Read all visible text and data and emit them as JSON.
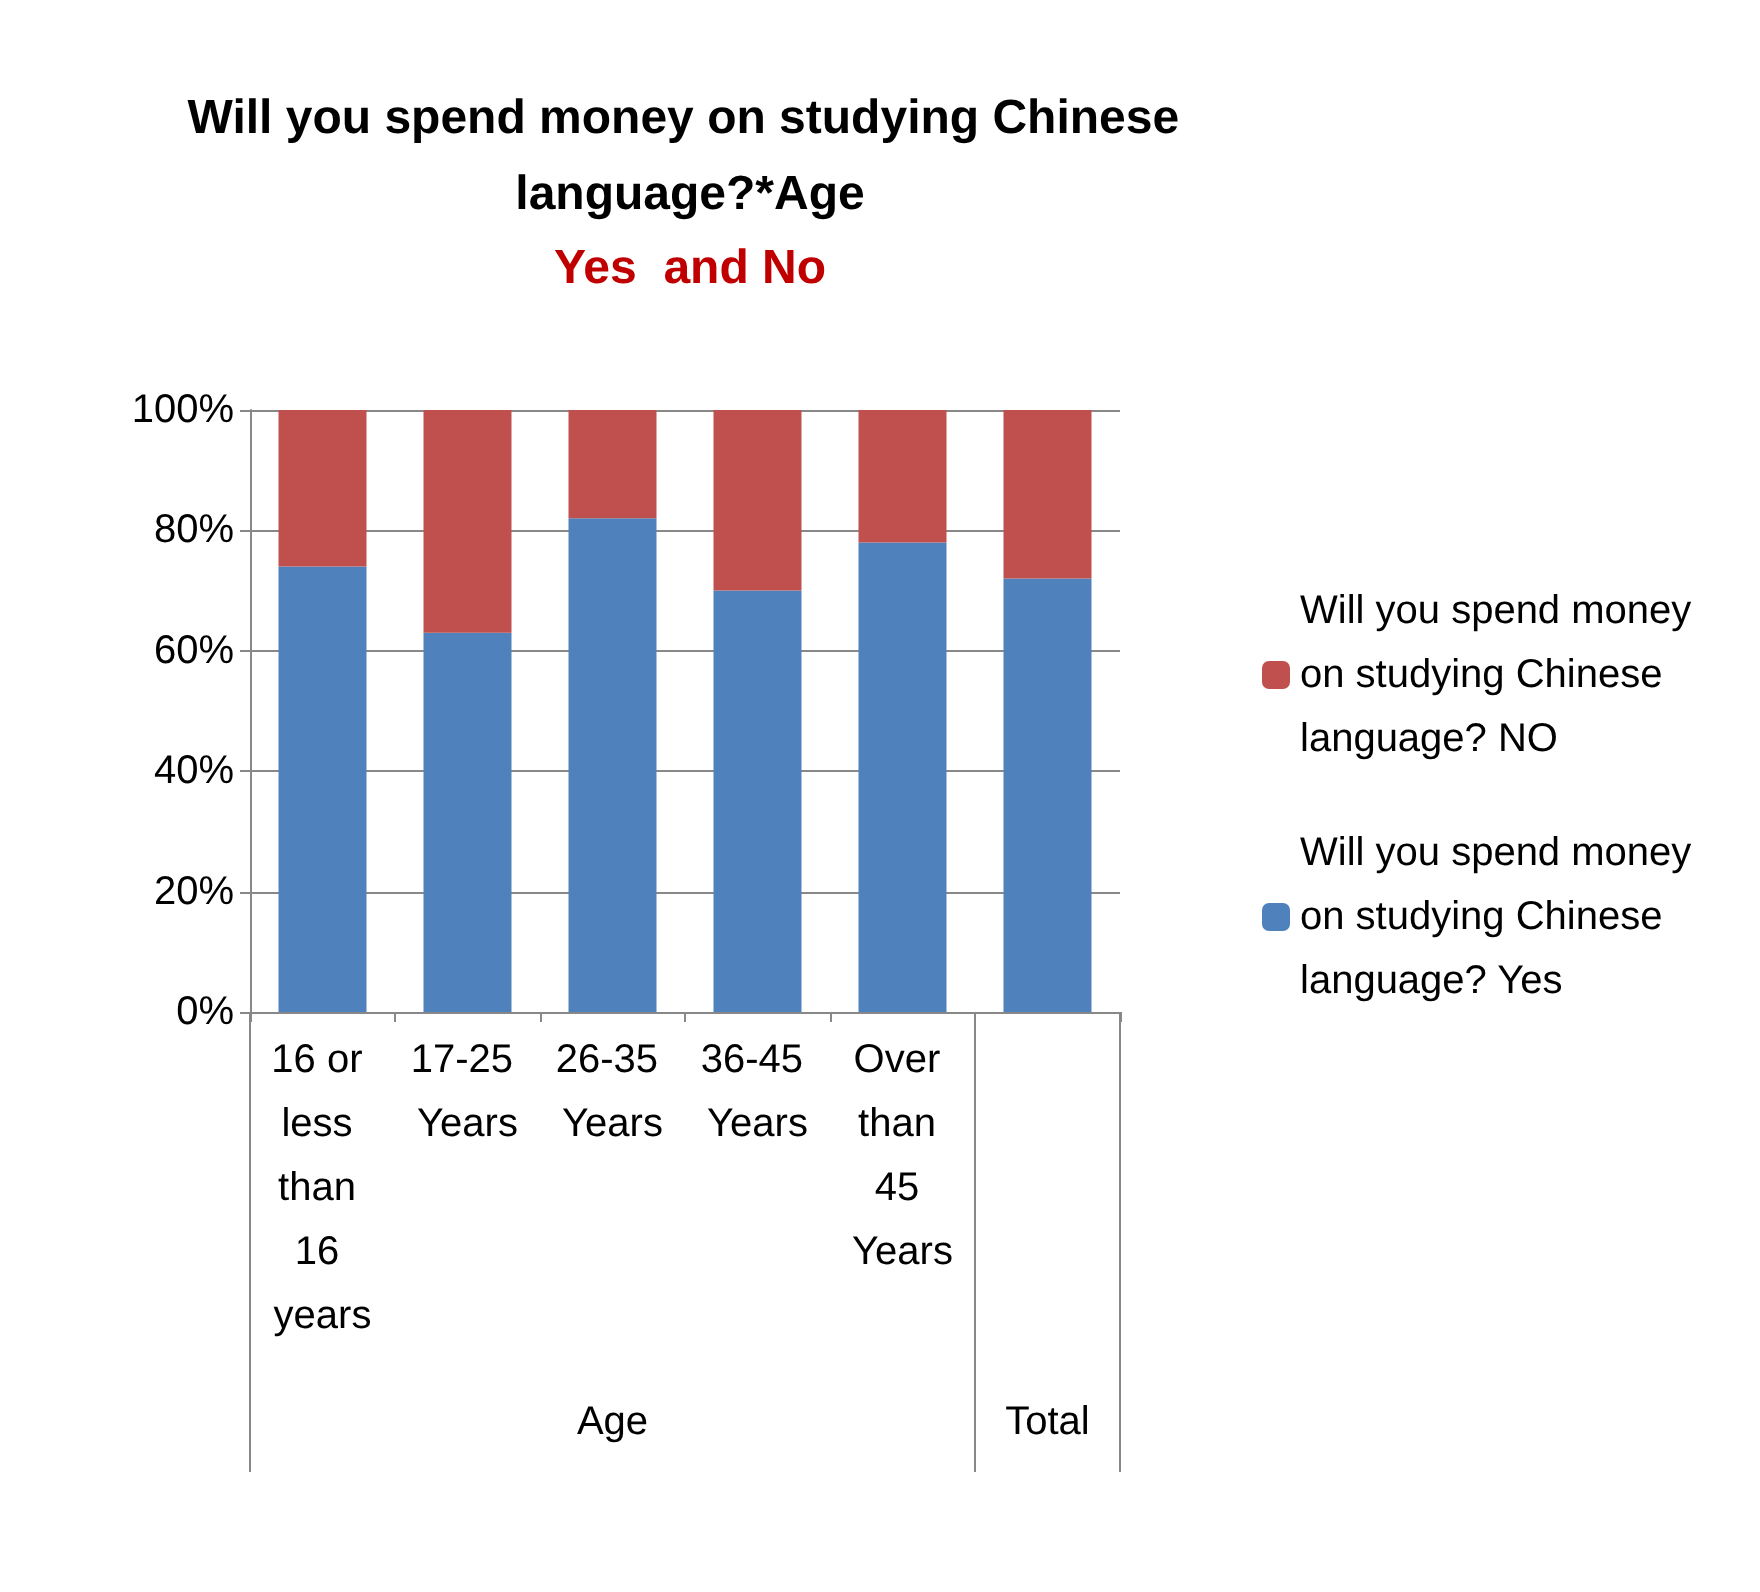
{
  "chart_data": {
    "type": "bar",
    "title": "Will you spend money on studying Chinese language?*Age",
    "subtitle": "Yes  and No",
    "categories": [
      "16 or less than 16 years",
      "17-25 Years",
      "26-35 Years",
      "36-45 Years",
      "Over than 45 Years",
      null
    ],
    "series": [
      {
        "name": "Will you spend money on studying Chinese language? Yes",
        "color": "#4f81bd",
        "values": [
          74,
          63,
          82,
          70,
          78,
          72
        ]
      },
      {
        "name": "Will you spend money on studying Chinese language? NO",
        "color": "#c0504d",
        "values": [
          26,
          37,
          18,
          30,
          22,
          28
        ]
      }
    ],
    "stacked": true,
    "ylim": [
      0,
      100
    ],
    "yticks": [
      {
        "value": 0,
        "label": "0%"
      },
      {
        "value": 20,
        "label": "20%"
      },
      {
        "value": 40,
        "label": "40%"
      },
      {
        "value": 60,
        "label": "60%"
      },
      {
        "value": 80,
        "label": "80%"
      },
      {
        "value": 100,
        "label": "100%"
      }
    ],
    "grid": "y",
    "legend": "right",
    "annotations": [
      "Age",
      "Total"
    ]
  }
}
